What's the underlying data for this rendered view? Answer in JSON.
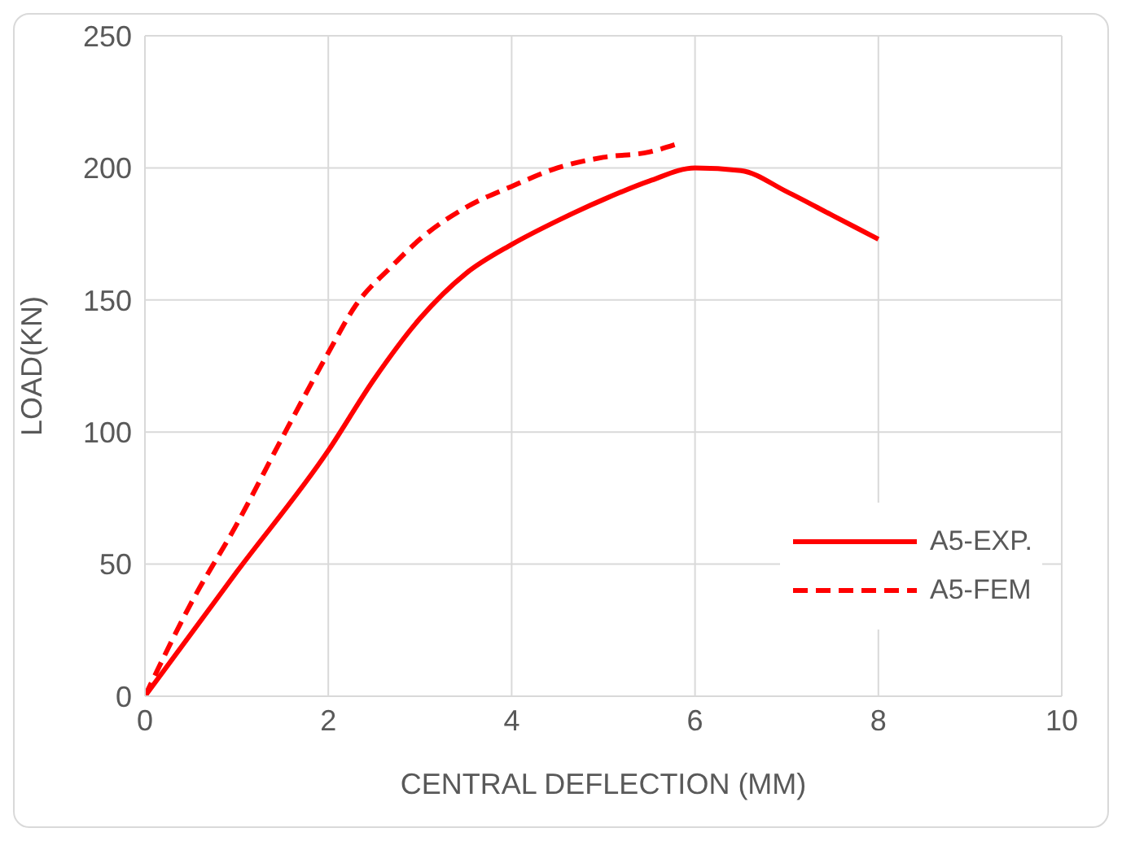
{
  "chart_data": {
    "type": "line",
    "xlabel": "CENTRAL DEFLECTION (MM)",
    "ylabel": "LOAD(KN)",
    "xlim": [
      0,
      10
    ],
    "xticks": [
      0,
      2,
      4,
      6,
      8,
      10
    ],
    "ylim": [
      0,
      250
    ],
    "yticks": [
      0,
      50,
      100,
      150,
      200,
      250
    ],
    "grid": true,
    "legend": "bottom right",
    "marker": "none",
    "series": [
      {
        "name": "A5-EXP.",
        "color": "#ff0000",
        "line_style": "solid",
        "x": [
          0,
          1,
          2,
          2.5,
          3,
          3.5,
          4,
          4.5,
          5,
          5.5,
          6,
          6.5,
          7,
          7.5,
          8
        ],
        "values": [
          0,
          47,
          93,
          120,
          143,
          160,
          171,
          180,
          188,
          195,
          200,
          199,
          191,
          182,
          173
        ]
      },
      {
        "name": "A5-FEM",
        "color": "#ff0000",
        "line_style": "dashed",
        "x": [
          0,
          0.5,
          1,
          1.5,
          2,
          2.3,
          2.7,
          3,
          3.5,
          4,
          4.5,
          5,
          5.5,
          5.8
        ],
        "values": [
          0,
          35,
          65,
          98,
          130,
          148,
          163,
          173,
          185,
          193,
          200,
          204,
          206,
          209
        ]
      }
    ]
  }
}
